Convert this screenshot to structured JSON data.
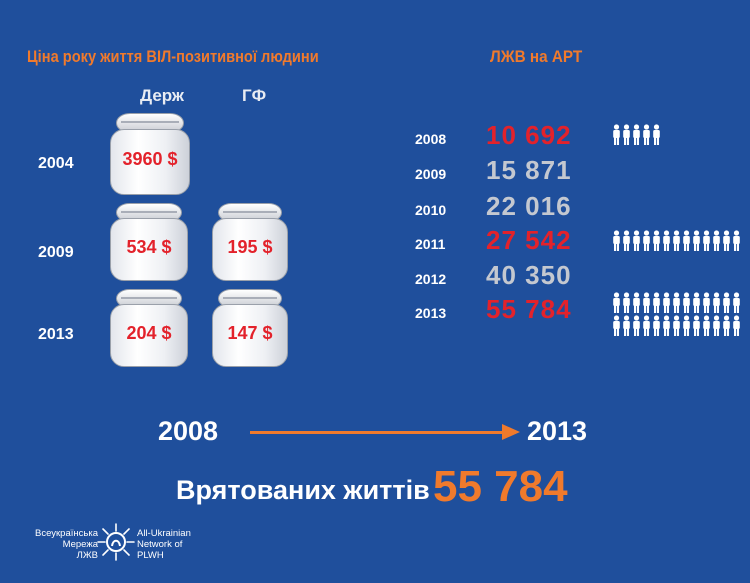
{
  "left_title": "Ціна року життя ВІЛ-позитивної людини",
  "right_title": "ЛЖВ на АРТ",
  "columns": {
    "gov": "Держ",
    "gf": "ГФ"
  },
  "costs": [
    {
      "year": "2004",
      "gov": "3960 $",
      "gf": ""
    },
    {
      "year": "2009",
      "gov": "534 $",
      "gf": "195 $"
    },
    {
      "year": "2013",
      "gov": "204 $",
      "gf": "147 $"
    }
  ],
  "plwh": [
    {
      "year": "2008",
      "value": "10 692",
      "highlight": true,
      "people_icons": 5
    },
    {
      "year": "2009",
      "value": "15 871",
      "highlight": false,
      "people_icons": 0
    },
    {
      "year": "2010",
      "value": "22 016",
      "highlight": false,
      "people_icons": 0
    },
    {
      "year": "2011",
      "value": "27 542",
      "highlight": true,
      "people_icons": 13
    },
    {
      "year": "2012",
      "value": "40 350",
      "highlight": false,
      "people_icons": 0
    },
    {
      "year": "2013",
      "value": "55 784",
      "highlight": true,
      "people_icons": 26
    }
  ],
  "timeline": {
    "from": "2008",
    "to": "2013"
  },
  "saved": {
    "label": "Врятованих життів",
    "value": "55 784"
  },
  "logo": {
    "ua_lines": [
      "Всеукраїнська",
      "Мережа",
      "ЛЖВ"
    ],
    "en_lines": [
      "All-Ukrainian",
      "Network of",
      "PLWH"
    ]
  },
  "colors": {
    "background": "#1f4f9c",
    "accent_orange": "#f07a2c",
    "highlight_red": "#e3222b",
    "muted_gray": "#c4c8d0",
    "text_white": "#ffffff"
  }
}
